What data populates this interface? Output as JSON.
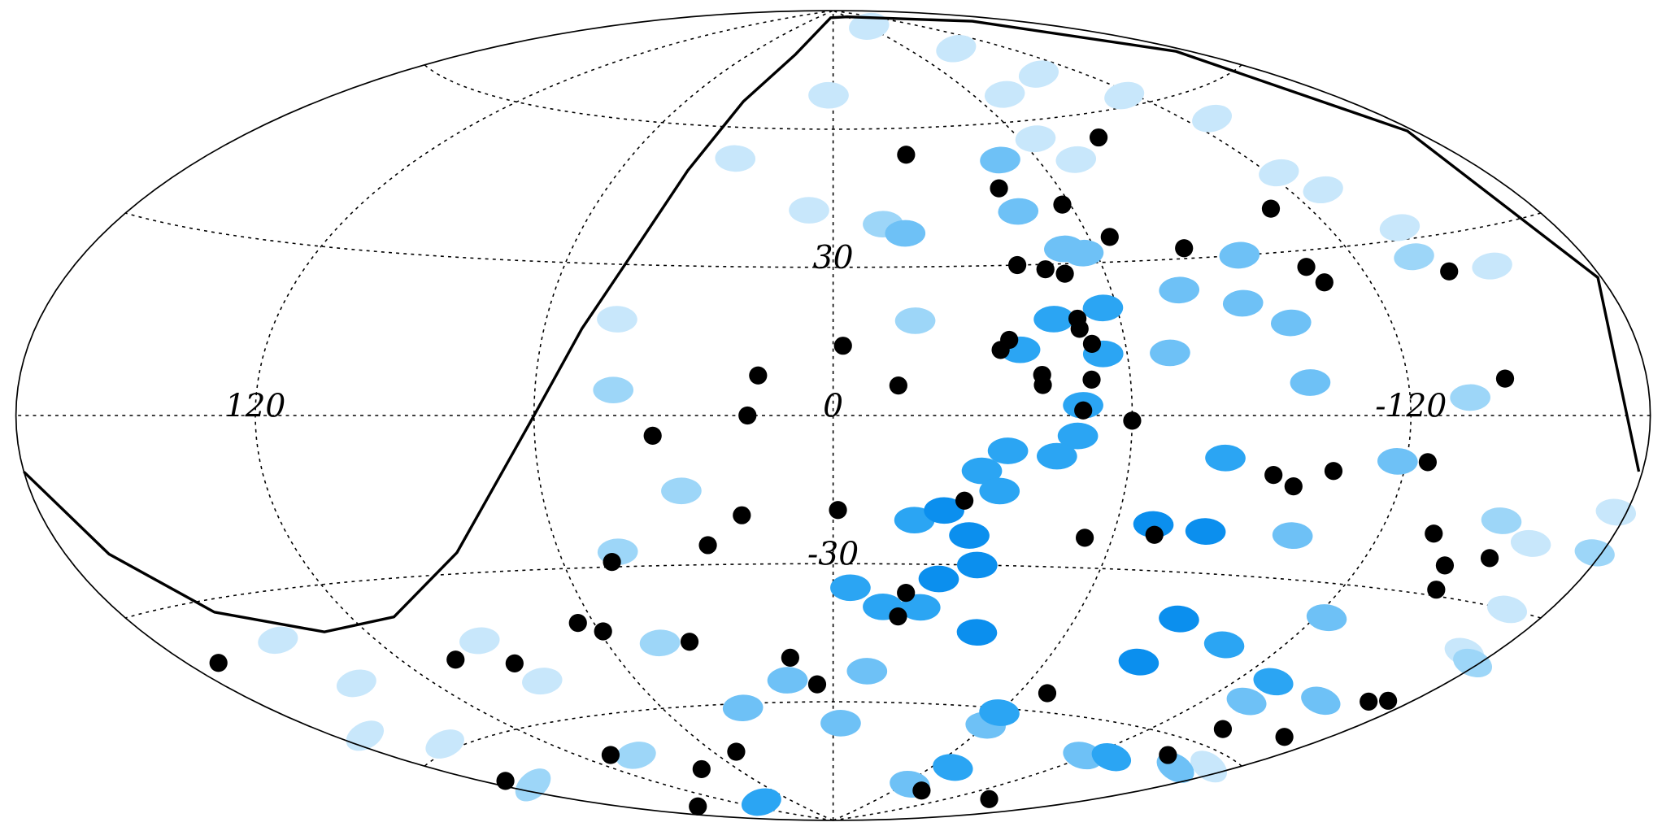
{
  "chart_data": {
    "type": "scatter",
    "projection": "hammer",
    "xlim": [
      180,
      -180
    ],
    "ylim": [
      -90,
      90
    ],
    "xticks": [
      120,
      0,
      -120
    ],
    "yticks": [
      30,
      -30
    ],
    "xgrid": [
      -120,
      -60,
      0,
      60,
      120
    ],
    "ygrid": [
      -60,
      -30,
      0,
      30,
      60
    ],
    "grid": true,
    "line": {
      "color": "#000000",
      "x": [
        -179,
        -179,
        -178,
        -176,
        -165,
        -60,
        10,
        28,
        37,
        41,
        45,
        52,
        60,
        83,
        109,
        131,
        154,
        168,
        180
      ],
      "y": [
        -8,
        20,
        45,
        65,
        80,
        88,
        88,
        78,
        66,
        50,
        34,
        17,
        0,
        -26,
        -37,
        -38,
        -32,
        -21,
        -8
      ]
    },
    "series": [
      {
        "color": "#c8e7fb",
        "marker": "ellipse",
        "x": [
          -63,
          -92,
          -102,
          -116,
          -129,
          2,
          29,
          6,
          -73,
          -123,
          -129,
          -138,
          -153,
          45,
          -159,
          -168,
          -171,
          146,
          142,
          171,
          154,
          88,
          93,
          -171,
          -177,
          -65,
          -71
        ],
        "y": [
          85,
          77,
          69,
          62,
          55,
          68,
          53,
          42,
          66,
          44,
          40,
          32,
          24,
          19,
          -20,
          -30,
          -37,
          -38,
          -47,
          -54,
          -59,
          -52,
          -43,
          -62,
          -14,
          56,
          51
        ]
      },
      {
        "color": "#9dd6f8",
        "marker": "ellipse",
        "x": [
          44,
          31,
          -17,
          -135,
          -134,
          -178,
          46,
          170,
          97,
          47,
          -178,
          -148,
          -12
        ],
        "y": [
          5,
          -15,
          19,
          27,
          3,
          -38,
          -46,
          -68,
          -69,
          -27,
          -20,
          -17,
          39
        ]
      },
      {
        "color": "#6ec1f6",
        "marker": "ellipse",
        "x": [
          -49,
          -46,
          -93,
          -88,
          -97,
          -98,
          -75,
          -17,
          -118,
          -100,
          14,
          -3,
          32,
          -10,
          -60,
          -64,
          -118,
          -154,
          -133,
          -123,
          -162,
          -69,
          -53,
          -57
        ],
        "y": [
          52,
          41,
          30,
          21,
          17,
          6,
          24,
          37,
          -8,
          -22,
          -55,
          -65,
          -61,
          -53,
          -64,
          -79,
          -67,
          -49,
          -52,
          -36,
          -64,
          12,
          33,
          32
        ]
      },
      {
        "color": "#2ba5f3",
        "marker": "ellipse",
        "x": [
          -46,
          -57,
          -55,
          -38,
          -50,
          -49,
          -45,
          -35,
          -30,
          -34,
          -17,
          -12,
          -4,
          -21,
          -80,
          -104,
          -131,
          -60,
          -72,
          -130,
          97
        ],
        "y": [
          19,
          21,
          12,
          13,
          2,
          -4,
          -8,
          -7,
          -11,
          -15,
          -21,
          -39,
          -35,
          -39,
          -8,
          -43,
          -48,
          -61,
          -74,
          -66,
          -83
        ]
      },
      {
        "color": "#0b8fee",
        "marker": "ellipse",
        "x": [
          -23,
          -29,
          -32,
          -24,
          -37,
          -80,
          -68,
          -86,
          -86
        ],
        "y": [
          -19,
          -24,
          -30,
          -33,
          -44,
          -22,
          -21,
          -39,
          -48
        ]
      },
      {
        "color": "#000000",
        "marker": "dot",
        "x": [
          -22,
          -85,
          -44,
          -58,
          -65,
          -81,
          -110,
          -41,
          -47,
          -51,
          -107,
          -109,
          -141,
          -51,
          -51,
          -36,
          -34,
          -53,
          -2,
          15,
          -13,
          -42,
          -42,
          -52,
          -50,
          -60,
          17,
          36,
          -143,
          -125,
          -91,
          -96,
          -104,
          -27,
          -1,
          19,
          -54,
          -69,
          27,
          49,
          -133,
          -141,
          -151,
          -144,
          -17,
          -16,
          64,
          59,
          38,
          12,
          5,
          171,
          105,
          90,
          -69,
          -168,
          -173,
          -143,
          -167,
          107,
          49,
          80,
          -147,
          173,
          -83,
          -143,
          153
        ],
        "y": [
          54,
          55,
          46,
          42,
          35,
          32,
          38,
          30,
          29,
          28,
          27,
          24,
          24,
          19,
          17,
          15,
          13,
          14,
          14,
          8,
          6,
          8,
          6,
          7,
          1,
          -1,
          0,
          -4,
          6,
          -8,
          -11,
          -13,
          -10,
          -17,
          -19,
          -20,
          -24,
          -23,
          -26,
          -29,
          -20,
          -25,
          -23,
          -29,
          -36,
          -41,
          -41,
          -43,
          -46,
          -50,
          -56,
          -39,
          -46,
          -48,
          -56,
          -47,
          -46,
          -57,
          -55,
          -68,
          -71,
          -74,
          -63,
          -66,
          -80,
          -78,
          -80
        ]
      }
    ]
  }
}
